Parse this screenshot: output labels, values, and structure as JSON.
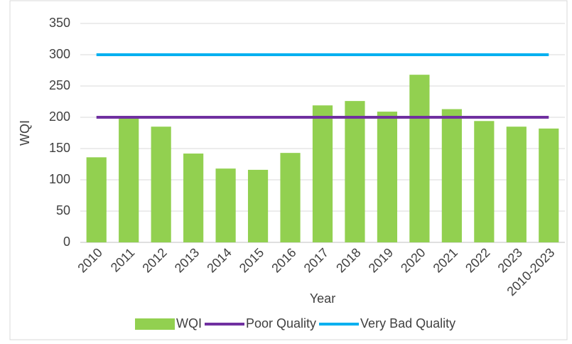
{
  "chart_data": {
    "type": "bar",
    "x_label": "Year",
    "y_label": "WQI",
    "categories": [
      "2010",
      "2011",
      "2012",
      "2013",
      "2014",
      "2015",
      "2016",
      "2017",
      "2018",
      "2019",
      "2020",
      "2021",
      "2022",
      "2023",
      "2010-2023"
    ],
    "series": [
      {
        "name": "WQI",
        "type": "bar",
        "color": "#92d050",
        "values": [
          136,
          198,
          185,
          142,
          118,
          116,
          143,
          219,
          226,
          209,
          268,
          213,
          194,
          185,
          182
        ]
      },
      {
        "name": "Poor Quality",
        "type": "line",
        "color": "#7030a0",
        "values": [
          200,
          200,
          200,
          200,
          200,
          200,
          200,
          200,
          200,
          200,
          200,
          200,
          200,
          200,
          200
        ]
      },
      {
        "name": "Very Bad Quality",
        "type": "line",
        "color": "#00b0f0",
        "values": [
          300,
          300,
          300,
          300,
          300,
          300,
          300,
          300,
          300,
          300,
          300,
          300,
          300,
          300,
          300
        ]
      }
    ],
    "ylim": [
      0,
      350
    ],
    "yticks": [
      0,
      50,
      100,
      150,
      200,
      250,
      300,
      350
    ],
    "legend": "bottom"
  }
}
